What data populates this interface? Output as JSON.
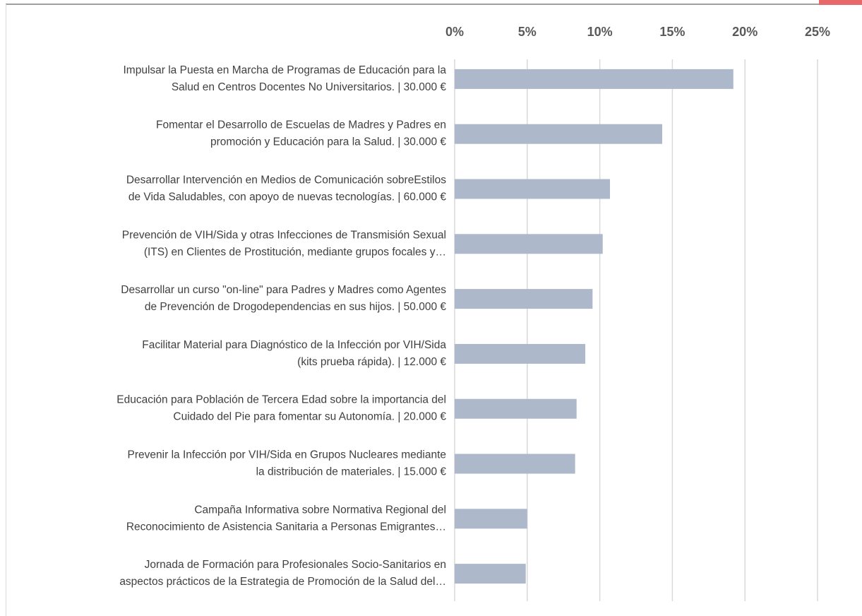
{
  "chart_data": {
    "type": "barh",
    "categories": [
      [
        "Impulsar la Puesta en Marcha de Programas de Educación para la",
        "Salud en Centros Docentes No Universitarios. | 30.000 €"
      ],
      [
        "Fomentar el Desarrollo de Escuelas de Madres y Padres en",
        "promoción y Educación para la Salud. | 30.000 €"
      ],
      [
        "Desarrollar Intervención en Medios de Comunicación sobreEstilos",
        "de Vida Saludables, con apoyo de nuevas tecnologías. | 60.000 €"
      ],
      [
        "Prevención de VIH/Sida y otras Infecciones de Transmisión Sexual",
        "(ITS) en Clientes de Prostitución, mediante grupos focales y…"
      ],
      [
        "Desarrollar un curso \"on-line\" para Padres y Madres como Agentes",
        "de Prevención de Drogodependencias en sus hijos. | 50.000 €"
      ],
      [
        "Facilitar Material para Diagnóstico de la Infección por VIH/Sida",
        "(kits prueba rápida). | 12.000 €"
      ],
      [
        "Educación para Población de Tercera Edad sobre la importancia del",
        "Cuidado del Pie para fomentar su Autonomía. | 20.000 €"
      ],
      [
        "Prevenir la Infección por VIH/Sida en Grupos Nucleares mediante",
        "la distribución de materiales. | 15.000 €"
      ],
      [
        "Campaña Informativa sobre Normativa Regional del",
        "Reconocimiento de Asistencia Sanitaria a Personas Emigrantes…"
      ],
      [
        "Jornada de Formación para Profesionales Socio-Sanitarios en",
        "aspectos prácticos de la Estrategia de Promoción de la Salud del…"
      ]
    ],
    "values": [
      19.2,
      14.3,
      10.7,
      10.2,
      9.5,
      9.0,
      8.4,
      8.3,
      5.0,
      4.9
    ],
    "color": "#adb9ca",
    "xlim": [
      0,
      25
    ],
    "xticks": [
      {
        "value": 0,
        "label": "0%"
      },
      {
        "value": 5,
        "label": "5%"
      },
      {
        "value": 10,
        "label": "10%"
      },
      {
        "value": 15,
        "label": "15%"
      },
      {
        "value": 20,
        "label": "20%"
      },
      {
        "value": 25,
        "label": "25%"
      }
    ],
    "grid": true
  }
}
